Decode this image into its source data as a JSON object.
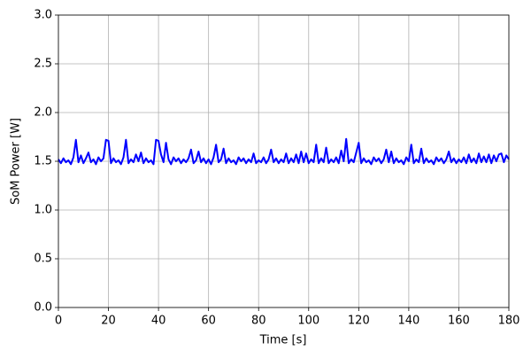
{
  "chart_data": {
    "type": "line",
    "xlabel": "Time [s]",
    "ylabel": "SoM Power [W]",
    "x": [
      0,
      1,
      2,
      3,
      4,
      5,
      6,
      7,
      8,
      9,
      10,
      11,
      12,
      13,
      14,
      15,
      16,
      17,
      18,
      19,
      20,
      21,
      22,
      23,
      24,
      25,
      26,
      27,
      28,
      29,
      30,
      31,
      32,
      33,
      34,
      35,
      36,
      37,
      38,
      39,
      40,
      41,
      42,
      43,
      44,
      45,
      46,
      47,
      48,
      49,
      50,
      51,
      52,
      53,
      54,
      55,
      56,
      57,
      58,
      59,
      60,
      61,
      62,
      63,
      64,
      65,
      66,
      67,
      68,
      69,
      70,
      71,
      72,
      73,
      74,
      75,
      76,
      77,
      78,
      79,
      80,
      81,
      82,
      83,
      84,
      85,
      86,
      87,
      88,
      89,
      90,
      91,
      92,
      93,
      94,
      95,
      96,
      97,
      98,
      99,
      100,
      101,
      102,
      103,
      104,
      105,
      106,
      107,
      108,
      109,
      110,
      111,
      112,
      113,
      114,
      115,
      116,
      117,
      118,
      119,
      120,
      121,
      122,
      123,
      124,
      125,
      126,
      127,
      128,
      129,
      130,
      131,
      132,
      133,
      134,
      135,
      136,
      137,
      138,
      139,
      140,
      141,
      142,
      143,
      144,
      145,
      146,
      147,
      148,
      149,
      150,
      151,
      152,
      153,
      154,
      155,
      156,
      157,
      158,
      159,
      160,
      161,
      162,
      163,
      164,
      165,
      166,
      167,
      168,
      169,
      170,
      171,
      172,
      173,
      174,
      175,
      176,
      177,
      178,
      179,
      180
    ],
    "series": [
      {
        "color": "#0000ff",
        "values": [
          1.52,
          1.48,
          1.53,
          1.49,
          1.51,
          1.47,
          1.54,
          1.72,
          1.49,
          1.56,
          1.48,
          1.53,
          1.59,
          1.49,
          1.52,
          1.47,
          1.54,
          1.5,
          1.53,
          1.72,
          1.71,
          1.48,
          1.53,
          1.49,
          1.51,
          1.47,
          1.54,
          1.72,
          1.48,
          1.52,
          1.49,
          1.57,
          1.5,
          1.59,
          1.48,
          1.53,
          1.49,
          1.51,
          1.47,
          1.72,
          1.71,
          1.57,
          1.49,
          1.69,
          1.52,
          1.47,
          1.54,
          1.5,
          1.53,
          1.48,
          1.52,
          1.49,
          1.53,
          1.62,
          1.48,
          1.51,
          1.6,
          1.49,
          1.53,
          1.48,
          1.52,
          1.47,
          1.54,
          1.67,
          1.49,
          1.52,
          1.63,
          1.48,
          1.53,
          1.49,
          1.51,
          1.47,
          1.54,
          1.5,
          1.53,
          1.48,
          1.52,
          1.49,
          1.58,
          1.48,
          1.51,
          1.49,
          1.54,
          1.48,
          1.52,
          1.62,
          1.49,
          1.53,
          1.48,
          1.52,
          1.49,
          1.58,
          1.48,
          1.53,
          1.49,
          1.57,
          1.48,
          1.6,
          1.49,
          1.58,
          1.48,
          1.52,
          1.49,
          1.67,
          1.48,
          1.53,
          1.49,
          1.64,
          1.48,
          1.52,
          1.49,
          1.54,
          1.48,
          1.61,
          1.5,
          1.73,
          1.48,
          1.52,
          1.49,
          1.59,
          1.69,
          1.48,
          1.53,
          1.49,
          1.51,
          1.47,
          1.54,
          1.5,
          1.53,
          1.48,
          1.52,
          1.62,
          1.49,
          1.6,
          1.48,
          1.53,
          1.49,
          1.51,
          1.47,
          1.54,
          1.5,
          1.67,
          1.48,
          1.52,
          1.49,
          1.63,
          1.48,
          1.53,
          1.49,
          1.51,
          1.47,
          1.54,
          1.5,
          1.53,
          1.48,
          1.52,
          1.6,
          1.49,
          1.53,
          1.48,
          1.52,
          1.49,
          1.54,
          1.48,
          1.57,
          1.49,
          1.53,
          1.48,
          1.58,
          1.49,
          1.55,
          1.49,
          1.57,
          1.48,
          1.56,
          1.5,
          1.57,
          1.58,
          1.49,
          1.56,
          1.52
        ]
      }
    ],
    "xlim": [
      0,
      180
    ],
    "xticks": [
      0,
      20,
      40,
      60,
      80,
      100,
      120,
      140,
      160,
      180
    ],
    "ylim": [
      0,
      3
    ],
    "yticks": [
      {
        "value": 0,
        "label": "0.0"
      },
      0.5,
      {
        "value": 1,
        "label": "1.0"
      },
      1.5,
      {
        "value": 2,
        "label": "2.0"
      },
      2.5,
      {
        "value": 3,
        "label": "3.0"
      }
    ],
    "grid": true
  }
}
